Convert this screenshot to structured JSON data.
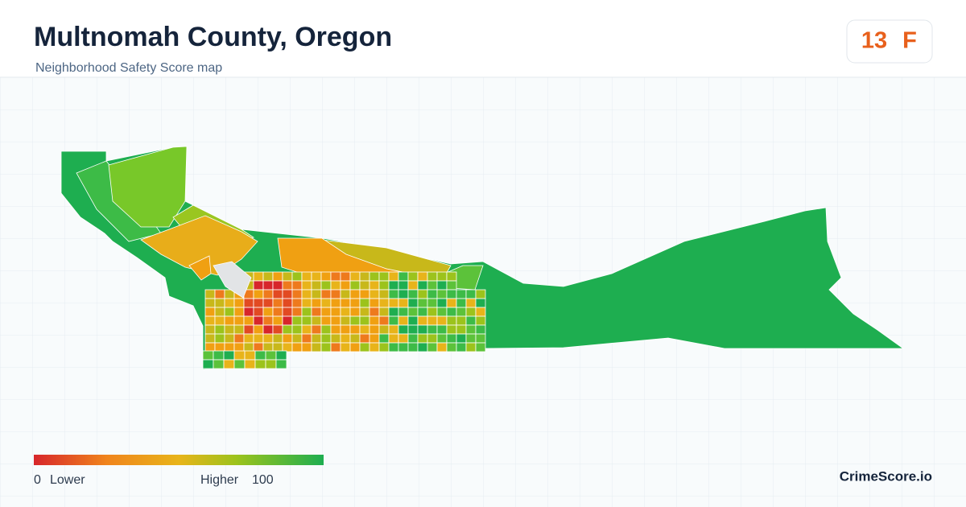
{
  "header": {
    "title": "Multnomah County, Oregon",
    "subtitle": "Neighborhood Safety Score map"
  },
  "score": {
    "value": 13,
    "grade": "F"
  },
  "legend": {
    "min": 0,
    "min_label": "Lower",
    "max_label": "Higher",
    "max": 100
  },
  "brand": "CrimeScore.io"
}
